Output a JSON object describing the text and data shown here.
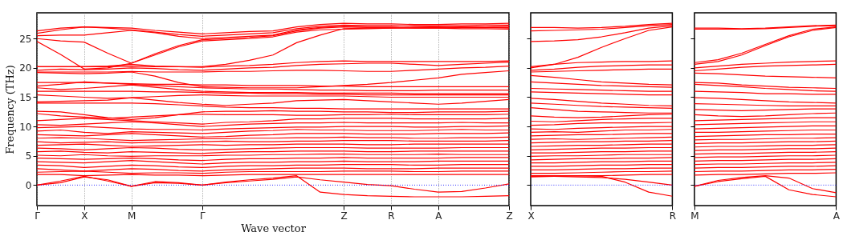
{
  "chart_data": [
    {
      "type": "line",
      "xlabel": "Wave vector",
      "ylabel": "Frequency (THz)",
      "grid": "x",
      "ylim": [
        -3.5,
        29.4
      ],
      "yticks": [
        0,
        5,
        10,
        15,
        20,
        25
      ],
      "categories": [
        "Γ",
        null,
        "X",
        null,
        "M",
        null,
        null,
        "Γ",
        null,
        null,
        null,
        null,
        null,
        "Z",
        null,
        "R",
        null,
        "A",
        null,
        null,
        "Z"
      ],
      "ref_lines": [
        {
          "axis": "y",
          "value": 0,
          "color": "#0000ff",
          "line_style": "dotted"
        }
      ],
      "series": [
        {
          "color": "#ff0000",
          "values": [
            26.3,
            26.8,
            27.0,
            26.9,
            26.8,
            26.4,
            26.1,
            25.8,
            26.0,
            26.2,
            26.3,
            27.0,
            27.4,
            27.6,
            27.5,
            27.5,
            27.4,
            27.4,
            27.5,
            27.5,
            27.6
          ]
        },
        {
          "color": "#ff0000",
          "values": [
            25.9,
            26.5,
            27.0,
            26.8,
            26.5,
            26.1,
            25.7,
            25.4,
            25.6,
            25.8,
            26.0,
            26.7,
            27.1,
            27.3,
            27.2,
            27.2,
            27.1,
            27.0,
            26.9,
            26.9,
            26.8
          ]
        },
        {
          "color": "#ff0000",
          "values": [
            25.5,
            25.6,
            25.6,
            26.0,
            26.4,
            26.0,
            25.4,
            25.0,
            25.2,
            25.4,
            25.6,
            26.5,
            26.9,
            27.1,
            27.1,
            27.1,
            27.2,
            27.2,
            27.2,
            27.3,
            27.3
          ]
        },
        {
          "color": "#ff0000",
          "values": [
            25.0,
            24.6,
            24.4,
            22.5,
            20.8,
            22.4,
            23.8,
            24.8,
            25.0,
            25.2,
            25.5,
            26.3,
            26.8,
            27.0,
            26.9,
            26.9,
            26.8,
            26.8,
            26.7,
            26.7,
            26.6
          ]
        },
        {
          "color": "#ff0000",
          "values": [
            24.5,
            22.3,
            19.8,
            20.0,
            20.8,
            22.2,
            23.6,
            24.6,
            24.8,
            25.0,
            25.3,
            26.1,
            26.5,
            26.6,
            26.7,
            26.8,
            26.9,
            26.9,
            27.0,
            27.0,
            27.1
          ]
        },
        {
          "color": "#ff0000",
          "values": [
            20.2,
            20.2,
            20.2,
            20.2,
            20.3,
            20.2,
            20.2,
            20.2,
            20.6,
            21.3,
            22.2,
            24.3,
            25.6,
            26.7,
            26.8,
            26.8,
            26.8,
            26.8,
            26.9,
            26.9,
            26.9
          ]
        },
        {
          "color": "#ff0000",
          "values": [
            20.2,
            20.2,
            20.2,
            20.3,
            20.6,
            20.3,
            20.2,
            20.1,
            20.3,
            20.4,
            20.6,
            20.9,
            21.1,
            21.2,
            21.1,
            21.1,
            21.1,
            21.1,
            21.1,
            21.1,
            21.2
          ]
        },
        {
          "color": "#ff0000",
          "values": [
            19.6,
            19.8,
            19.7,
            19.8,
            20.0,
            19.9,
            19.7,
            19.6,
            19.8,
            20.0,
            20.1,
            20.4,
            20.6,
            20.7,
            20.8,
            20.8,
            20.6,
            20.4,
            20.6,
            20.8,
            21.0
          ]
        },
        {
          "color": "#ff0000",
          "values": [
            19.3,
            19.3,
            19.3,
            19.3,
            19.4,
            19.3,
            19.3,
            19.3,
            19.4,
            19.4,
            19.5,
            19.6,
            19.6,
            19.5,
            19.4,
            19.4,
            19.6,
            19.8,
            20.0,
            20.1,
            20.3
          ]
        },
        {
          "color": "#ff0000",
          "values": [
            19.2,
            19.1,
            19.0,
            19.1,
            19.3,
            18.6,
            17.5,
            16.8,
            16.7,
            16.6,
            16.6,
            16.6,
            16.8,
            17.0,
            17.2,
            17.5,
            17.9,
            18.3,
            18.9,
            19.2,
            19.5
          ]
        },
        {
          "color": "#ff0000",
          "values": [
            17.5,
            17.5,
            17.5,
            17.4,
            17.3,
            17.2,
            17.2,
            17.1,
            17.1,
            17.0,
            17.0,
            17.0,
            16.9,
            16.9,
            16.8,
            16.8,
            16.8,
            16.8,
            16.8,
            16.8,
            16.8
          ]
        },
        {
          "color": "#ff0000",
          "values": [
            16.9,
            17.2,
            17.6,
            17.4,
            17.2,
            17.0,
            16.8,
            16.6,
            16.5,
            16.4,
            16.4,
            16.3,
            16.2,
            16.2,
            16.1,
            16.1,
            16.1,
            16.2,
            16.2,
            16.2,
            16.2
          ]
        },
        {
          "color": "#ff0000",
          "values": [
            16.6,
            16.3,
            16.5,
            16.8,
            17.1,
            16.7,
            16.3,
            16.0,
            15.9,
            15.8,
            15.8,
            15.8,
            15.7,
            15.7,
            15.7,
            15.7,
            15.6,
            15.6,
            15.6,
            15.6,
            15.6
          ]
        },
        {
          "color": "#ff0000",
          "values": [
            16.0,
            16.0,
            16.0,
            16.0,
            16.0,
            15.9,
            15.9,
            15.8,
            15.7,
            15.7,
            15.6,
            15.6,
            15.5,
            15.5,
            15.4,
            15.4,
            15.4,
            15.4,
            15.4,
            15.4,
            15.4
          ]
        },
        {
          "color": "#ff0000",
          "values": [
            15.4,
            15.2,
            15.0,
            14.8,
            14.9,
            15.1,
            15.3,
            15.4,
            15.3,
            15.2,
            15.2,
            15.2,
            15.2,
            15.2,
            15.1,
            15.0,
            15.0,
            15.0,
            15.0,
            15.0,
            15.0
          ]
        },
        {
          "color": "#ff0000",
          "values": [
            14.2,
            14.3,
            14.4,
            14.5,
            14.9,
            14.5,
            14.1,
            13.8,
            13.6,
            13.8,
            14.0,
            14.4,
            14.5,
            14.6,
            14.4,
            14.2,
            14.0,
            13.8,
            14.0,
            14.3,
            14.6
          ]
        },
        {
          "color": "#ff0000",
          "values": [
            14.0,
            14.0,
            14.0,
            14.0,
            14.0,
            13.9,
            13.7,
            13.5,
            13.3,
            13.2,
            13.2,
            13.1,
            13.1,
            13.0,
            13.0,
            13.0,
            13.0,
            13.0,
            13.0,
            13.0,
            13.0
          ]
        },
        {
          "color": "#ff0000",
          "values": [
            12.6,
            12.5,
            12.0,
            11.5,
            11.2,
            11.5,
            12.0,
            12.5,
            12.6,
            12.6,
            12.7,
            12.6,
            12.6,
            12.5,
            12.5,
            12.4,
            12.4,
            12.5,
            12.5,
            12.5,
            12.6
          ]
        },
        {
          "color": "#ff0000",
          "values": [
            12.2,
            11.8,
            11.6,
            11.4,
            11.6,
            11.8,
            12.0,
            12.1,
            12.0,
            12.0,
            12.0,
            11.9,
            11.9,
            12.0,
            12.0,
            12.1,
            12.0,
            12.0,
            12.0,
            12.0,
            12.1
          ]
        },
        {
          "color": "#ff0000",
          "values": [
            11.0,
            11.2,
            11.4,
            11.2,
            11.0,
            10.8,
            10.6,
            10.4,
            10.7,
            10.8,
            11.0,
            11.3,
            11.3,
            11.4,
            11.4,
            11.4,
            11.3,
            11.3,
            11.3,
            11.3,
            11.4
          ]
        },
        {
          "color": "#ff0000",
          "values": [
            10.3,
            10.2,
            10.4,
            10.6,
            10.8,
            10.6,
            10.3,
            10.0,
            10.2,
            10.4,
            10.5,
            10.6,
            10.6,
            10.7,
            10.6,
            10.6,
            10.6,
            10.6,
            10.7,
            10.6,
            10.6
          ]
        },
        {
          "color": "#ff0000",
          "values": [
            9.8,
            9.9,
            10.0,
            9.8,
            9.6,
            9.5,
            9.5,
            9.4,
            9.6,
            9.7,
            9.8,
            9.9,
            9.9,
            10.0,
            10.0,
            10.0,
            9.9,
            9.9,
            10.0,
            10.0,
            10.1
          ]
        },
        {
          "color": "#ff0000",
          "values": [
            9.2,
            9.4,
            9.0,
            8.8,
            9.1,
            9.0,
            8.9,
            8.8,
            9.0,
            9.2,
            9.3,
            9.5,
            9.4,
            9.4,
            9.3,
            9.3,
            9.3,
            9.4,
            9.5,
            9.4,
            9.4
          ]
        },
        {
          "color": "#ff0000",
          "values": [
            8.6,
            8.5,
            8.4,
            8.6,
            8.8,
            8.6,
            8.4,
            8.2,
            8.3,
            8.5,
            8.6,
            8.8,
            8.8,
            8.8,
            8.7,
            8.7,
            8.7,
            8.8,
            8.8,
            8.8,
            8.9
          ]
        },
        {
          "color": "#ff0000",
          "values": [
            8.0,
            8.1,
            8.0,
            7.8,
            7.6,
            7.7,
            7.8,
            7.9,
            7.9,
            8.0,
            8.0,
            8.1,
            8.1,
            8.2,
            8.1,
            8.1,
            8.0,
            8.0,
            8.1,
            8.1,
            8.2
          ]
        },
        {
          "color": "#ff0000",
          "values": [
            7.4,
            7.2,
            7.3,
            7.4,
            7.2,
            7.3,
            7.3,
            7.4,
            7.5,
            7.4,
            7.4,
            7.5,
            7.5,
            7.6,
            7.6,
            7.6,
            7.5,
            7.5,
            7.5,
            7.5,
            7.6
          ]
        },
        {
          "color": "#ff0000",
          "values": [
            6.8,
            6.9,
            7.0,
            6.8,
            6.6,
            6.7,
            6.8,
            6.9,
            6.8,
            6.9,
            6.9,
            7.0,
            7.0,
            7.0,
            6.9,
            6.9,
            7.0,
            7.0,
            7.0,
            7.0,
            7.0
          ]
        },
        {
          "color": "#ff0000",
          "values": [
            6.3,
            6.2,
            6.0,
            6.2,
            6.4,
            6.3,
            6.1,
            6.0,
            6.1,
            6.2,
            6.3,
            6.4,
            6.4,
            6.4,
            6.3,
            6.3,
            6.3,
            6.3,
            6.4,
            6.4,
            6.4
          ]
        },
        {
          "color": "#ff0000",
          "values": [
            5.7,
            5.8,
            5.6,
            5.5,
            5.7,
            5.6,
            5.5,
            5.4,
            5.6,
            5.7,
            5.7,
            5.8,
            5.8,
            5.8,
            5.7,
            5.7,
            5.8,
            5.8,
            5.8,
            5.8,
            5.8
          ]
        },
        {
          "color": "#ff0000",
          "values": [
            5.1,
            5.0,
            5.2,
            5.0,
            4.9,
            5.0,
            5.0,
            5.0,
            5.1,
            5.1,
            5.2,
            5.2,
            5.3,
            5.3,
            5.2,
            5.2,
            5.2,
            5.3,
            5.2,
            5.2,
            5.2
          ]
        },
        {
          "color": "#ff0000",
          "values": [
            4.6,
            4.5,
            4.4,
            4.5,
            4.6,
            4.5,
            4.3,
            4.2,
            4.4,
            4.5,
            4.5,
            4.6,
            4.6,
            4.7,
            4.6,
            4.6,
            4.6,
            4.6,
            4.7,
            4.7,
            4.7
          ]
        },
        {
          "color": "#ff0000",
          "values": [
            4.0,
            3.9,
            3.8,
            4.0,
            4.2,
            4.0,
            3.8,
            3.6,
            3.8,
            3.9,
            3.9,
            4.0,
            4.0,
            4.1,
            4.0,
            4.0,
            4.0,
            4.1,
            4.1,
            4.1,
            4.1
          ]
        },
        {
          "color": "#ff0000",
          "values": [
            3.4,
            3.3,
            3.0,
            3.2,
            3.4,
            3.3,
            3.1,
            3.0,
            3.2,
            3.3,
            3.3,
            3.4,
            3.4,
            3.5,
            3.5,
            3.5,
            3.4,
            3.4,
            3.5,
            3.5,
            3.5
          ]
        },
        {
          "color": "#ff0000",
          "values": [
            2.8,
            2.6,
            2.4,
            2.6,
            2.8,
            2.7,
            2.5,
            2.4,
            2.6,
            2.7,
            2.8,
            2.9,
            2.9,
            2.9,
            2.8,
            2.8,
            2.8,
            2.9,
            2.9,
            2.9,
            2.9
          ]
        },
        {
          "color": "#ff0000",
          "values": [
            2.2,
            2.3,
            2.4,
            2.2,
            2.0,
            2.1,
            2.1,
            2.0,
            2.2,
            2.3,
            2.3,
            2.3,
            2.3,
            2.4,
            2.4,
            2.4,
            2.3,
            2.3,
            2.4,
            2.4,
            2.4
          ]
        },
        {
          "color": "#ff0000",
          "values": [
            1.8,
            1.8,
            1.6,
            1.7,
            1.8,
            1.7,
            1.7,
            1.6,
            1.7,
            1.8,
            1.8,
            1.8,
            1.8,
            1.8,
            1.8,
            1.8,
            1.8,
            1.8,
            1.8,
            1.8,
            1.8
          ]
        },
        {
          "color": "#ff0000",
          "values": [
            0,
            0.7,
            1.5,
            0.7,
            -0.2,
            0.4,
            0.3,
            0,
            0.5,
            0.9,
            1.2,
            1.6,
            -1.2,
            -1.6,
            -1.8,
            -1.9,
            -2.0,
            -2.0,
            -2.0,
            -1.9,
            -1.8
          ]
        },
        {
          "color": "#ff0000",
          "values": [
            0,
            0.4,
            1.4,
            0.9,
            -0.2,
            0.6,
            0.4,
            0,
            0.4,
            0.7,
            1.0,
            1.4,
            0.9,
            0.5,
            0.1,
            -0.1,
            -0.7,
            -1.2,
            -1.1,
            -0.5,
            0.2
          ]
        }
      ]
    },
    {
      "type": "line",
      "tick_labels": "x",
      "ylim": [
        -3.5,
        29.4
      ],
      "yticks": [
        0,
        5,
        10,
        15,
        20,
        25
      ],
      "categories": [
        "X",
        null,
        null,
        null,
        null,
        null,
        "R"
      ],
      "ref_lines": [
        {
          "axis": "y",
          "value": 0,
          "color": "#0000ff",
          "line_style": "dotted"
        }
      ],
      "series": [
        {
          "color": "#ff0000",
          "values": [
            26.9,
            26.9,
            26.8,
            26.9,
            27.1,
            27.4,
            27.6
          ]
        },
        {
          "color": "#ff0000",
          "values": [
            26.3,
            26.4,
            26.5,
            26.6,
            26.9,
            27.2,
            27.4
          ]
        },
        {
          "color": "#ff0000",
          "values": [
            24.5,
            24.6,
            24.8,
            25.3,
            26.0,
            26.8,
            27.2
          ]
        },
        {
          "color": "#ff0000",
          "values": [
            20.0,
            20.6,
            21.8,
            23.5,
            25.0,
            26.4,
            27.0
          ]
        },
        {
          "color": "#ff0000",
          "values": [
            20.2,
            20.6,
            20.9,
            21.0,
            21.1,
            21.1,
            21.2
          ]
        },
        {
          "color": "#ff0000",
          "values": [
            19.6,
            19.8,
            20.1,
            20.3,
            20.4,
            20.5,
            20.5
          ]
        },
        {
          "color": "#ff0000",
          "values": [
            19.3,
            19.4,
            19.5,
            19.6,
            19.7,
            19.8,
            19.8
          ]
        },
        {
          "color": "#ff0000",
          "values": [
            18.7,
            18.4,
            18.0,
            17.6,
            17.4,
            17.2,
            17.1
          ]
        },
        {
          "color": "#ff0000",
          "values": [
            17.6,
            17.4,
            17.2,
            17.0,
            16.9,
            16.8,
            16.7
          ]
        },
        {
          "color": "#ff0000",
          "values": [
            16.5,
            16.4,
            16.3,
            16.2,
            16.1,
            16.0,
            16.0
          ]
        },
        {
          "color": "#ff0000",
          "values": [
            15.9,
            15.8,
            15.7,
            15.6,
            15.5,
            15.4,
            15.4
          ]
        },
        {
          "color": "#ff0000",
          "values": [
            14.8,
            14.6,
            14.3,
            14.0,
            13.8,
            13.6,
            13.5
          ]
        },
        {
          "color": "#ff0000",
          "values": [
            14.0,
            13.8,
            13.6,
            13.4,
            13.3,
            13.2,
            13.1
          ]
        },
        {
          "color": "#ff0000",
          "values": [
            13.2,
            12.9,
            12.6,
            12.5,
            12.4,
            12.3,
            12.3
          ]
        },
        {
          "color": "#ff0000",
          "values": [
            11.8,
            11.6,
            11.5,
            11.6,
            11.8,
            12.0,
            12.1
          ]
        },
        {
          "color": "#ff0000",
          "values": [
            10.9,
            10.8,
            11.0,
            11.2,
            11.3,
            11.4,
            11.4
          ]
        },
        {
          "color": "#ff0000",
          "values": [
            10.2,
            10.3,
            10.5,
            10.6,
            10.6,
            10.6,
            10.7
          ]
        },
        {
          "color": "#ff0000",
          "values": [
            9.6,
            9.5,
            9.7,
            9.8,
            9.9,
            10.0,
            10.0
          ]
        },
        {
          "color": "#ff0000",
          "values": [
            9.0,
            9.1,
            9.0,
            9.2,
            9.4,
            9.4,
            9.5
          ]
        },
        {
          "color": "#ff0000",
          "values": [
            8.4,
            8.5,
            8.6,
            8.6,
            8.7,
            8.8,
            8.8
          ]
        },
        {
          "color": "#ff0000",
          "values": [
            7.8,
            7.9,
            7.8,
            7.9,
            8.0,
            8.1,
            8.2
          ]
        },
        {
          "color": "#ff0000",
          "values": [
            7.2,
            7.3,
            7.4,
            7.4,
            7.5,
            7.5,
            7.6
          ]
        },
        {
          "color": "#ff0000",
          "values": [
            6.6,
            6.7,
            6.8,
            6.8,
            6.9,
            7.0,
            7.0
          ]
        },
        {
          "color": "#ff0000",
          "values": [
            6.0,
            6.1,
            6.2,
            6.3,
            6.3,
            6.4,
            6.4
          ]
        },
        {
          "color": "#ff0000",
          "values": [
            5.5,
            5.5,
            5.6,
            5.7,
            5.7,
            5.8,
            5.8
          ]
        },
        {
          "color": "#ff0000",
          "values": [
            4.9,
            5.0,
            5.0,
            5.1,
            5.2,
            5.2,
            5.2
          ]
        },
        {
          "color": "#ff0000",
          "values": [
            4.3,
            4.4,
            4.5,
            4.5,
            4.6,
            4.6,
            4.7
          ]
        },
        {
          "color": "#ff0000",
          "values": [
            3.8,
            3.8,
            3.9,
            4.0,
            4.0,
            4.1,
            4.1
          ]
        },
        {
          "color": "#ff0000",
          "values": [
            3.2,
            3.2,
            3.3,
            3.4,
            3.4,
            3.5,
            3.5
          ]
        },
        {
          "color": "#ff0000",
          "values": [
            2.6,
            2.6,
            2.7,
            2.8,
            2.8,
            2.9,
            2.9
          ]
        },
        {
          "color": "#ff0000",
          "values": [
            2.0,
            2.0,
            2.1,
            2.2,
            2.3,
            2.3,
            2.4
          ]
        },
        {
          "color": "#ff0000",
          "values": [
            1.6,
            1.6,
            1.6,
            1.6,
            1.7,
            1.8,
            1.8
          ]
        },
        {
          "color": "#ff0000",
          "values": [
            1.5,
            1.5,
            1.4,
            1.3,
            1.0,
            0.5,
            0.0
          ]
        },
        {
          "color": "#ff0000",
          "values": [
            1.4,
            1.5,
            1.6,
            1.5,
            0.5,
            -1.2,
            -1.9
          ]
        }
      ]
    },
    {
      "type": "line",
      "tick_labels": "x",
      "ylim": [
        -3.5,
        29.4
      ],
      "yticks": [
        0,
        5,
        10,
        15,
        20,
        25
      ],
      "categories": [
        "M",
        null,
        null,
        null,
        null,
        null,
        "A"
      ],
      "ref_lines": [
        {
          "axis": "y",
          "value": 0,
          "color": "#0000ff",
          "line_style": "dotted"
        }
      ],
      "series": [
        {
          "color": "#ff0000",
          "values": [
            26.8,
            26.8,
            26.7,
            26.8,
            27.0,
            27.2,
            27.3
          ]
        },
        {
          "color": "#ff0000",
          "values": [
            26.6,
            26.6,
            26.6,
            26.7,
            26.9,
            27.1,
            27.2
          ]
        },
        {
          "color": "#ff0000",
          "values": [
            20.9,
            21.4,
            22.5,
            24.0,
            25.5,
            26.6,
            27.0
          ]
        },
        {
          "color": "#ff0000",
          "values": [
            20.6,
            21.1,
            22.2,
            23.8,
            25.3,
            26.4,
            26.9
          ]
        },
        {
          "color": "#ff0000",
          "values": [
            20.0,
            20.3,
            20.6,
            20.8,
            21.0,
            21.1,
            21.2
          ]
        },
        {
          "color": "#ff0000",
          "values": [
            19.5,
            19.8,
            20.1,
            20.3,
            20.4,
            20.5,
            20.6
          ]
        },
        {
          "color": "#ff0000",
          "values": [
            19.1,
            19.0,
            18.8,
            18.6,
            18.5,
            18.4,
            18.3
          ]
        },
        {
          "color": "#ff0000",
          "values": [
            17.5,
            17.4,
            17.1,
            16.9,
            16.7,
            16.6,
            16.5
          ]
        },
        {
          "color": "#ff0000",
          "values": [
            17.2,
            17.0,
            16.8,
            16.5,
            16.3,
            16.1,
            16.0
          ]
        },
        {
          "color": "#ff0000",
          "values": [
            16.0,
            15.9,
            15.8,
            15.6,
            15.6,
            15.5,
            15.5
          ]
        },
        {
          "color": "#ff0000",
          "values": [
            14.9,
            14.8,
            14.6,
            14.4,
            14.2,
            14.1,
            14.0
          ]
        },
        {
          "color": "#ff0000",
          "values": [
            13.9,
            13.8,
            13.7,
            13.6,
            13.5,
            13.5,
            13.5
          ]
        },
        {
          "color": "#ff0000",
          "values": [
            12.9,
            12.8,
            12.7,
            12.8,
            12.9,
            13.0,
            13.0
          ]
        },
        {
          "color": "#ff0000",
          "values": [
            12.0,
            11.8,
            11.7,
            11.8,
            12.0,
            12.2,
            12.3
          ]
        },
        {
          "color": "#ff0000",
          "values": [
            11.0,
            11.1,
            11.2,
            11.3,
            11.4,
            11.5,
            11.5
          ]
        },
        {
          "color": "#ff0000",
          "values": [
            10.3,
            10.4,
            10.5,
            10.6,
            10.7,
            10.8,
            10.8
          ]
        },
        {
          "color": "#ff0000",
          "values": [
            9.6,
            9.7,
            9.8,
            9.9,
            10.0,
            10.1,
            10.1
          ]
        },
        {
          "color": "#ff0000",
          "values": [
            9.0,
            9.0,
            9.1,
            9.2,
            9.3,
            9.4,
            9.4
          ]
        },
        {
          "color": "#ff0000",
          "values": [
            8.3,
            8.4,
            8.5,
            8.6,
            8.6,
            8.7,
            8.7
          ]
        },
        {
          "color": "#ff0000",
          "values": [
            7.7,
            7.8,
            7.8,
            7.9,
            8.0,
            8.0,
            8.1
          ]
        },
        {
          "color": "#ff0000",
          "values": [
            7.1,
            7.2,
            7.2,
            7.3,
            7.4,
            7.4,
            7.5
          ]
        },
        {
          "color": "#ff0000",
          "values": [
            6.5,
            6.6,
            6.6,
            6.7,
            6.8,
            6.8,
            6.9
          ]
        },
        {
          "color": "#ff0000",
          "values": [
            5.9,
            6.0,
            6.0,
            6.1,
            6.2,
            6.2,
            6.3
          ]
        },
        {
          "color": "#ff0000",
          "values": [
            5.3,
            5.4,
            5.4,
            5.5,
            5.6,
            5.6,
            5.7
          ]
        },
        {
          "color": "#ff0000",
          "values": [
            4.7,
            4.8,
            4.8,
            4.9,
            5.0,
            5.0,
            5.1
          ]
        },
        {
          "color": "#ff0000",
          "values": [
            4.1,
            4.2,
            4.2,
            4.3,
            4.4,
            4.4,
            4.5
          ]
        },
        {
          "color": "#ff0000",
          "values": [
            3.5,
            3.6,
            3.6,
            3.7,
            3.8,
            3.8,
            3.9
          ]
        },
        {
          "color": "#ff0000",
          "values": [
            2.9,
            3.0,
            3.0,
            3.1,
            3.2,
            3.2,
            3.3
          ]
        },
        {
          "color": "#ff0000",
          "values": [
            2.3,
            2.4,
            2.4,
            2.5,
            2.6,
            2.6,
            2.7
          ]
        },
        {
          "color": "#ff0000",
          "values": [
            1.7,
            1.8,
            1.8,
            1.9,
            2.0,
            2.0,
            2.1
          ]
        },
        {
          "color": "#ff0000",
          "values": [
            -0.2,
            0.8,
            1.3,
            1.6,
            1.2,
            -0.6,
            -1.3
          ]
        },
        {
          "color": "#ff0000",
          "values": [
            -0.2,
            0.6,
            1.1,
            1.5,
            -0.8,
            -1.6,
            -2.0
          ]
        }
      ]
    }
  ]
}
